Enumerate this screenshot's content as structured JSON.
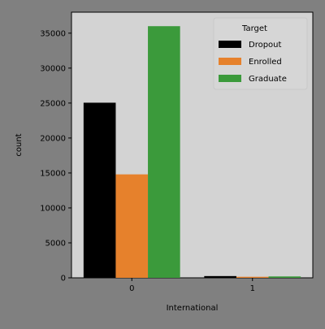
{
  "chart_data": {
    "type": "bar",
    "xlabel": "International",
    "ylabel": "count",
    "categories": [
      "0",
      "1"
    ],
    "ylim": [
      0,
      38000
    ],
    "yticks": [
      0,
      5000,
      10000,
      15000,
      20000,
      25000,
      30000,
      35000
    ],
    "legend": {
      "title": "Target",
      "placement": "top-right"
    },
    "series": [
      {
        "name": "Dropout",
        "color": "#000000",
        "values": [
          25050,
          250
        ]
      },
      {
        "name": "Enrolled",
        "color": "#e6812c",
        "values": [
          14800,
          150
        ]
      },
      {
        "name": "Graduate",
        "color": "#3b9a3b",
        "values": [
          36000,
          200
        ]
      }
    ],
    "colors": {
      "figure_background": "#808080",
      "plot_background": "#d3d3d3"
    }
  }
}
